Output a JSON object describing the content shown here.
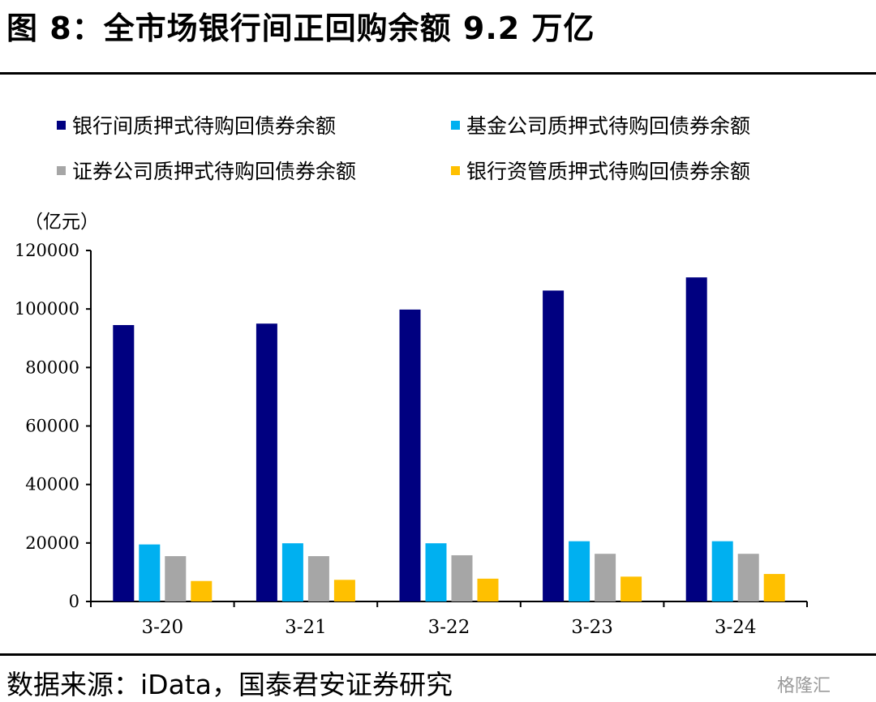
{
  "header": {
    "title": "图 8：全市场银行间正回购余额 9.2 万亿"
  },
  "footer": {
    "source": "数据来源：iData，国泰君安证券研究",
    "watermark": "格隆汇"
  },
  "chart_data": {
    "type": "bar",
    "unit_label": "（亿元）",
    "categories": [
      "3-20",
      "3-21",
      "3-22",
      "3-23",
      "3-24"
    ],
    "ylim": [
      0,
      120000
    ],
    "yticks": [
      0,
      20000,
      40000,
      60000,
      80000,
      100000,
      120000
    ],
    "legend": "top",
    "grid": false,
    "series": [
      {
        "name": "银行间质押式待购回债券余额",
        "color": "#000080",
        "values": [
          94500,
          95000,
          99800,
          106300,
          110800
        ]
      },
      {
        "name": "基金公司质押式待购回债券余额",
        "color": "#00B0F0",
        "values": [
          19500,
          19900,
          19900,
          20600,
          20600
        ]
      },
      {
        "name": "证券公司质押式待购回债券余额",
        "color": "#A6A6A6",
        "values": [
          15500,
          15500,
          15800,
          16300,
          16300
        ]
      },
      {
        "name": "银行资管质押式待购回债券余额",
        "color": "#FFC000",
        "values": [
          7000,
          7400,
          7800,
          8500,
          9400
        ]
      }
    ]
  }
}
